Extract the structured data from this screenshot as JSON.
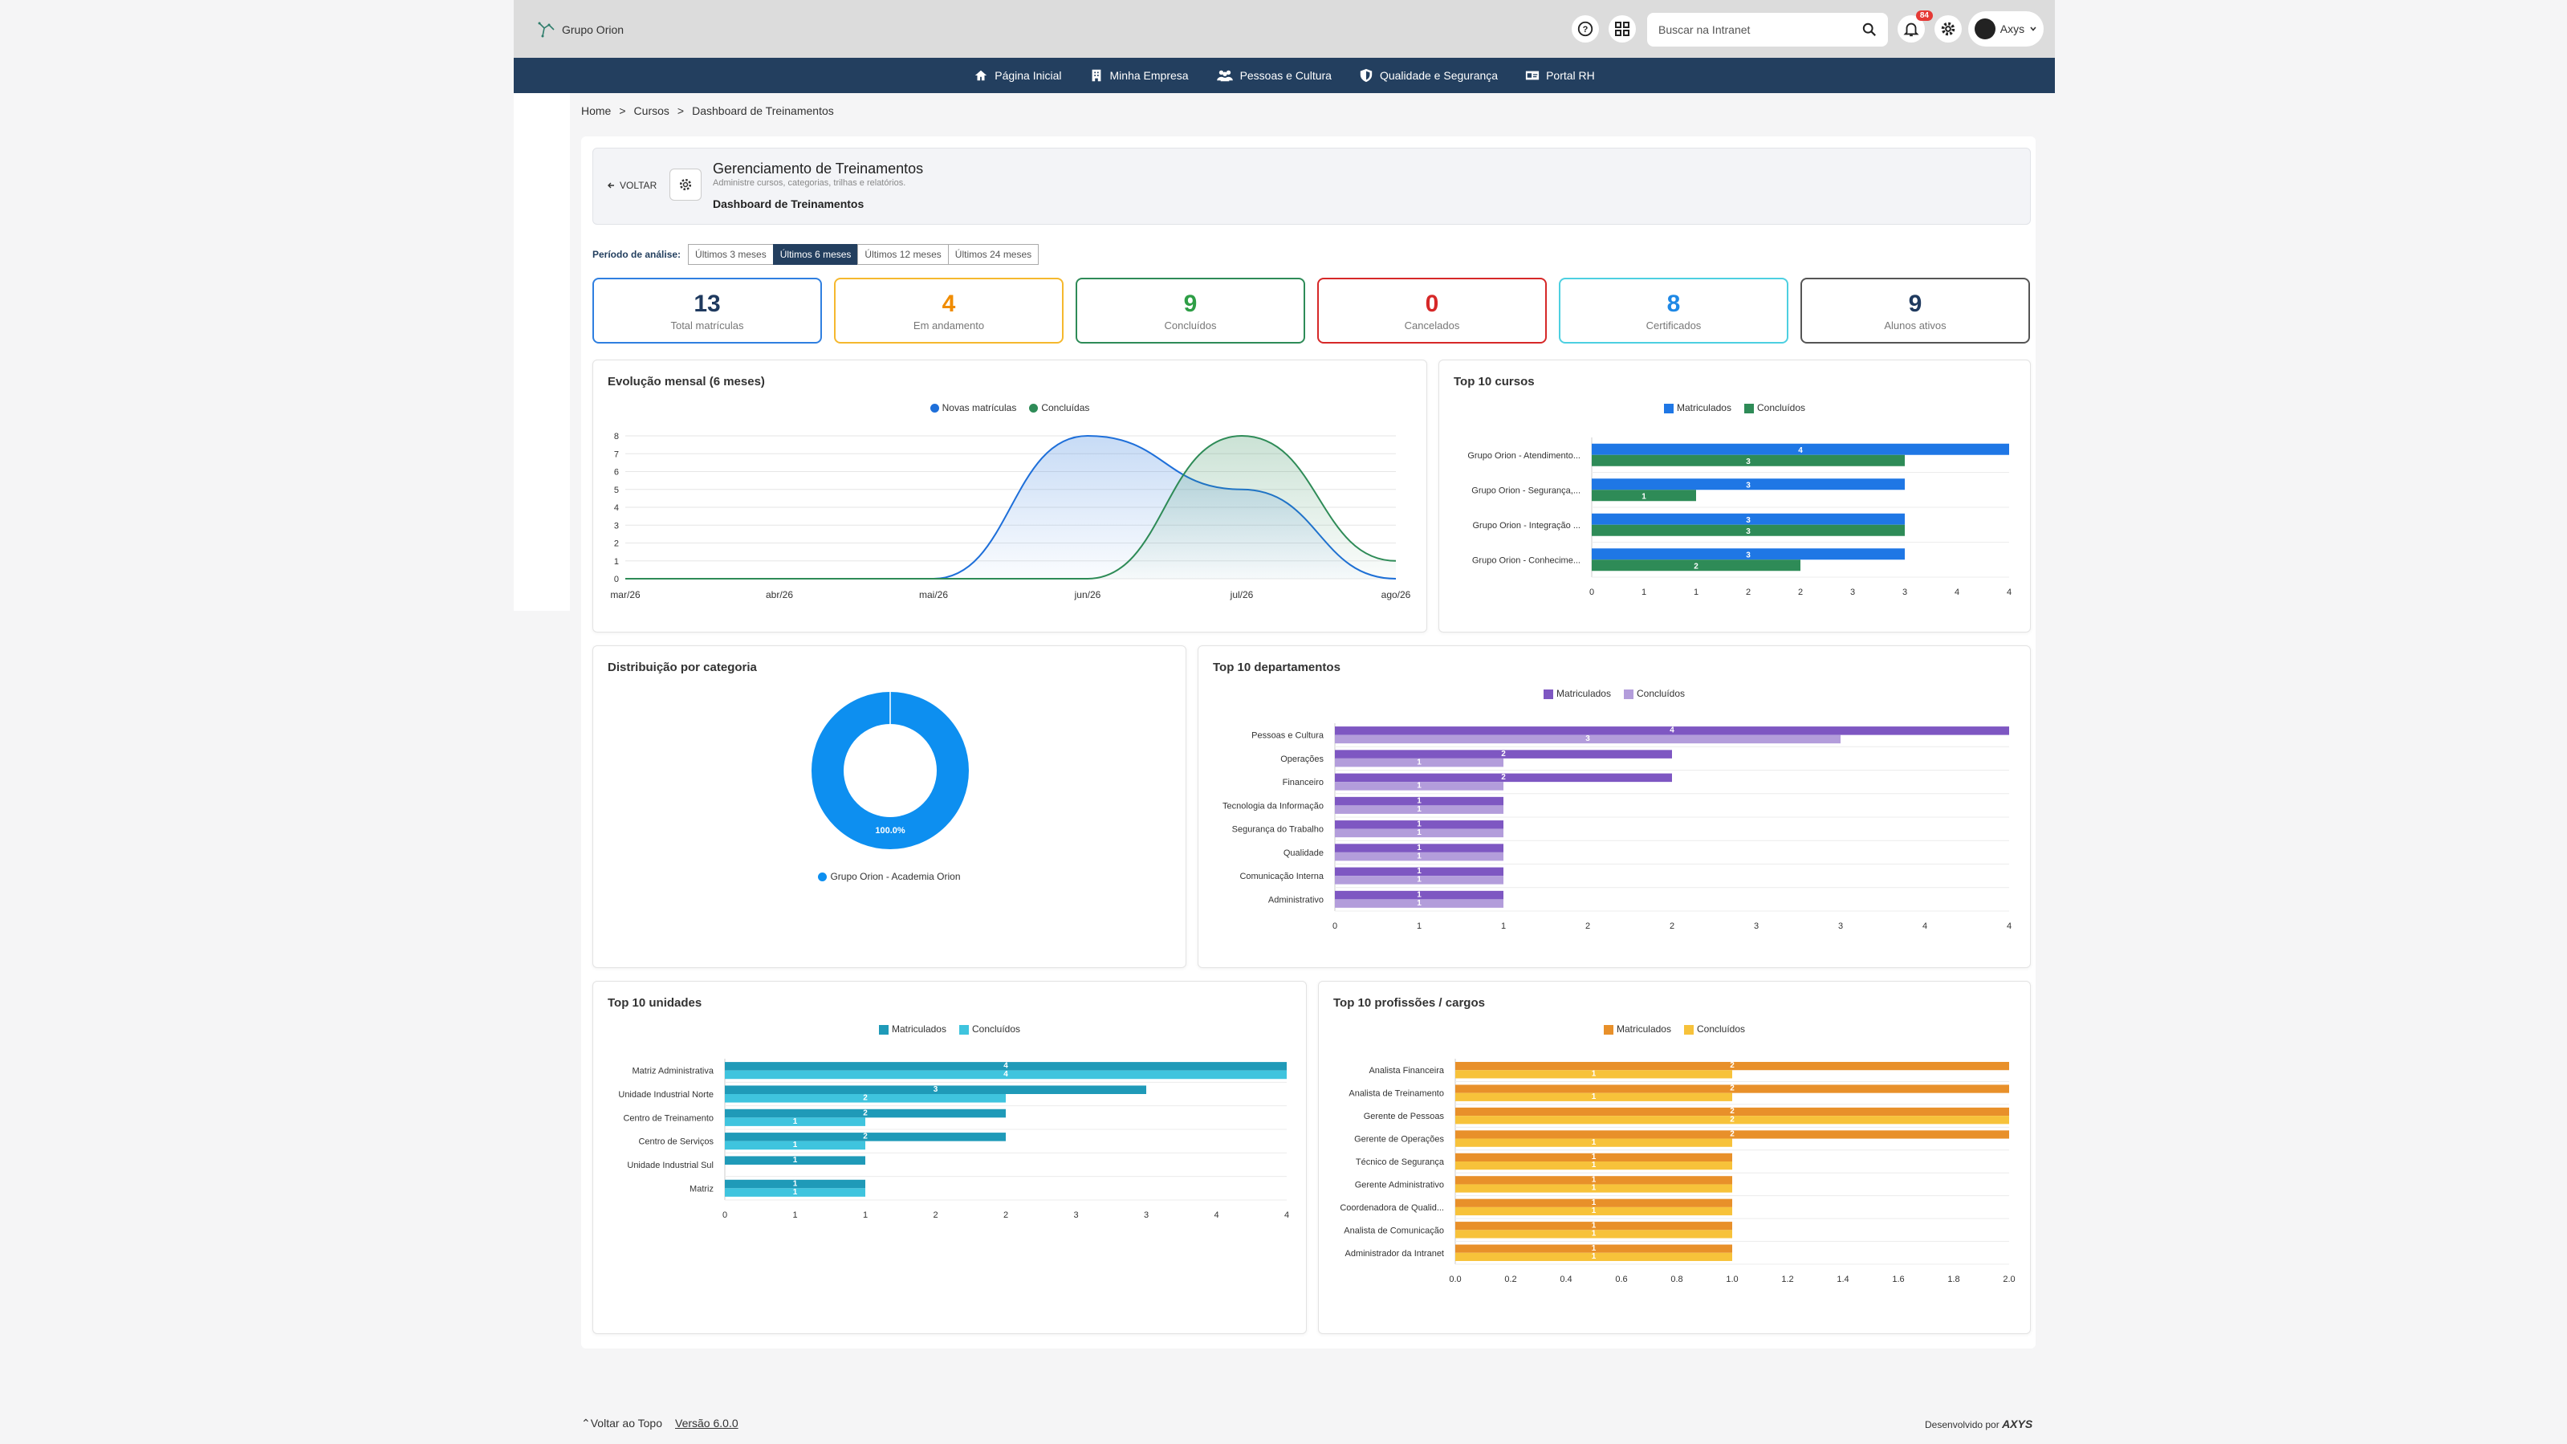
{
  "topbar": {
    "logo_text": "Grupo Orion",
    "search_placeholder": "Buscar na Intranet",
    "notif_count": "84",
    "user_name": "Axys"
  },
  "nav": [
    {
      "label": "Página Inicial",
      "icon": "home-icon"
    },
    {
      "label": "Minha Empresa",
      "icon": "building-icon"
    },
    {
      "label": "Pessoas e Cultura",
      "icon": "people-icon"
    },
    {
      "label": "Qualidade e Segurança",
      "icon": "shield-icon"
    },
    {
      "label": "Portal RH",
      "icon": "id-card-icon"
    }
  ],
  "breadcrumb": {
    "home": "Home",
    "cursos": "Cursos",
    "current": "Dashboard de Treinamentos",
    "sep": ">"
  },
  "header": {
    "back": "VOLTAR",
    "title": "Gerenciamento de Treinamentos",
    "subtitle": "Administre cursos, categorias, trilhas e relatórios.",
    "current": "Dashboard de Treinamentos"
  },
  "period": {
    "label": "Período de análise:",
    "options": [
      "Últimos 3 meses",
      "Últimos 6 meses",
      "Últimos 12 meses",
      "Últimos 24 meses"
    ],
    "selected": "Últimos 6 meses"
  },
  "stats": [
    {
      "value": "13",
      "label": "Total matrículas",
      "color": "#1f3a5f",
      "border": "#2f7fe0"
    },
    {
      "value": "4",
      "label": "Em andamento",
      "color": "#f08c00",
      "border": "#f5b82e"
    },
    {
      "value": "9",
      "label": "Concluídos",
      "color": "#2e9e46",
      "border": "#2e8b57"
    },
    {
      "value": "0",
      "label": "Cancelados",
      "color": "#d62828",
      "border": "#d62828"
    },
    {
      "value": "8",
      "label": "Certificados",
      "color": "#1e88e5",
      "border": "#4dd0e1"
    },
    {
      "value": "9",
      "label": "Alunos ativos",
      "color": "#1f3a5f",
      "border": "#555555"
    }
  ],
  "chart_data": [
    {
      "type": "area",
      "title": "Evolução mensal (6 meses)",
      "categories": [
        "mar/26",
        "abr/26",
        "mai/26",
        "jun/26",
        "jul/26",
        "ago/26"
      ],
      "ylim": [
        0,
        8
      ],
      "yticks": [
        "0",
        "1",
        "2",
        "3",
        "4",
        "5",
        "6",
        "7",
        "8"
      ],
      "legend": "top-center",
      "series": [
        {
          "name": "Novas matrículas",
          "values": [
            0,
            0,
            0,
            8,
            5,
            0
          ],
          "color": "#1e6fd9"
        },
        {
          "name": "Concluídas",
          "values": [
            0,
            0,
            0,
            0,
            8,
            1
          ],
          "color": "#2e8b57"
        }
      ]
    },
    {
      "type": "bar",
      "orientation": "horizontal",
      "title": "Top 10 cursos",
      "categories": [
        "Grupo Orion - Atendimento...",
        "Grupo Orion - Segurança,...",
        "Grupo Orion - Integração ...",
        "Grupo Orion - Conhecime..."
      ],
      "xlim": [
        0,
        4
      ],
      "xticks": [
        "0",
        "1",
        "1",
        "2",
        "2",
        "3",
        "3",
        "4",
        "4"
      ],
      "legend": "top-center",
      "series": [
        {
          "name": "Matriculados",
          "values": [
            4,
            3,
            3,
            3
          ],
          "color": "#1f77e5"
        },
        {
          "name": "Concluídos",
          "values": [
            3,
            1,
            3,
            2
          ],
          "color": "#2e8b57"
        }
      ]
    },
    {
      "type": "pie",
      "title": "Distribuição por categoria",
      "legend": "bottom-center",
      "slices": [
        {
          "label": "Grupo Orion - Academia Orion",
          "value": 100,
          "value_label": "100.0%",
          "color": "#0d8ff0"
        }
      ]
    },
    {
      "type": "bar",
      "orientation": "horizontal",
      "title": "Top 10 departamentos",
      "categories": [
        "Pessoas e Cultura",
        "Operações",
        "Financeiro",
        "Tecnologia da Informação",
        "Segurança do Trabalho",
        "Qualidade",
        "Comunicação Interna",
        "Administrativo"
      ],
      "xlim": [
        0,
        4
      ],
      "xticks": [
        "0",
        "1",
        "1",
        "2",
        "2",
        "3",
        "3",
        "4",
        "4"
      ],
      "legend": "top-center",
      "series": [
        {
          "name": "Matriculados",
          "values": [
            4,
            2,
            2,
            1,
            1,
            1,
            1,
            1
          ],
          "color": "#7e57c2"
        },
        {
          "name": "Concluídos",
          "values": [
            3,
            1,
            1,
            1,
            1,
            1,
            1,
            1
          ],
          "color": "#b39ddb"
        }
      ]
    },
    {
      "type": "bar",
      "orientation": "horizontal",
      "title": "Top 10 unidades",
      "categories": [
        "Matriz Administrativa",
        "Unidade Industrial Norte",
        "Centro de Treinamento",
        "Centro de Serviços",
        "Unidade Industrial Sul",
        "Matriz"
      ],
      "xlim": [
        0,
        4
      ],
      "xticks": [
        "0",
        "1",
        "1",
        "2",
        "2",
        "3",
        "3",
        "4",
        "4"
      ],
      "legend": "top-center",
      "series": [
        {
          "name": "Matriculados",
          "values": [
            4,
            3,
            2,
            2,
            1,
            1
          ],
          "color": "#1f9ab8"
        },
        {
          "name": "Concluídos",
          "values": [
            4,
            2,
            1,
            1,
            0,
            1
          ],
          "color": "#3fc4de"
        }
      ]
    },
    {
      "type": "bar",
      "orientation": "horizontal",
      "title": "Top 10 profissões / cargos",
      "categories": [
        "Analista Financeira",
        "Analista de Treinamento",
        "Gerente de Pessoas",
        "Gerente de Operações",
        "Técnico de Segurança",
        "Gerente Administrativo",
        "Coordenadora de Qualid...",
        "Analista de Comunicação",
        "Administrador da Intranet"
      ],
      "xlim": [
        0,
        2
      ],
      "xticks": [
        "0.0",
        "0.2",
        "0.4",
        "0.6",
        "0.8",
        "1.0",
        "1.2",
        "1.4",
        "1.6",
        "1.8",
        "2.0"
      ],
      "legend": "top-center",
      "series": [
        {
          "name": "Matriculados",
          "values": [
            2,
            2,
            2,
            2,
            1,
            1,
            1,
            1,
            1
          ],
          "color": "#e8902a"
        },
        {
          "name": "Concluídos",
          "values": [
            1,
            1,
            2,
            1,
            1,
            1,
            1,
            1,
            1
          ],
          "color": "#f7c23a"
        }
      ]
    }
  ],
  "footer": {
    "back_top": "Voltar ao Topo",
    "version": "Versão 6.0.0",
    "dev": "Desenvolvido por",
    "brand": "AXYS"
  }
}
